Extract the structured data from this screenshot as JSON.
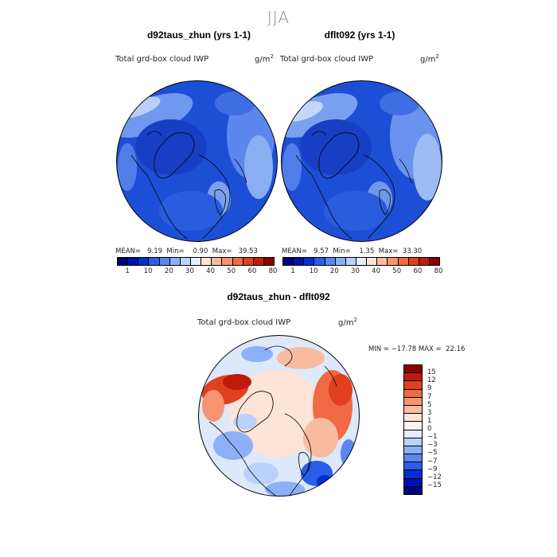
{
  "season": "JJA",
  "left_panel": {
    "title": "d92taus_zhun (yrs 1-1)",
    "variable": "Total grd-box cloud IWP",
    "units_base": "g/m",
    "units_exp": "2",
    "stats": "MEAN=   9.19  Min=    0.90  Max=   39.53"
  },
  "right_panel": {
    "title": "dflt092 (yrs 1-1)",
    "variable": "Total grd-box cloud IWP",
    "units_base": "g/m",
    "units_exp": "2",
    "stats": "MEAN=   9.57  Min=    1.35  Max=  33.30"
  },
  "abs_colorbar": {
    "colors": [
      "#000080",
      "#0010b0",
      "#0030d0",
      "#2a5de8",
      "#5a87f0",
      "#8cb0f7",
      "#bad2fb",
      "#e4eefd",
      "#fde4d6",
      "#f9bba0",
      "#f5946f",
      "#f06a44",
      "#e0401f",
      "#c01a0d",
      "#8b0000"
    ],
    "labels": [
      "1",
      "10",
      "20",
      "30",
      "40",
      "50",
      "60",
      "80"
    ]
  },
  "diff_panel": {
    "title": "d92taus_zhun - dflt092",
    "variable": "Total grd-box cloud IWP",
    "units_base": "g/m",
    "units_exp": "2",
    "stats": "MIN = −17.78 MAX =  22.16"
  },
  "diff_colorbar": {
    "colors": [
      "#8b0000",
      "#c01a0d",
      "#e0401f",
      "#f06a44",
      "#f5946f",
      "#f9bba0",
      "#fde4d6",
      "#fdf4ee",
      "#e4eefd",
      "#bad2fb",
      "#8cb0f7",
      "#5a87f0",
      "#2a5de8",
      "#0030d0",
      "#0010b0",
      "#000080"
    ],
    "labels": [
      "15",
      "12",
      "9",
      "7",
      "5",
      "3",
      "1",
      "0",
      "−1",
      "−3",
      "−5",
      "−7",
      "−9",
      "−12",
      "−15"
    ]
  }
}
